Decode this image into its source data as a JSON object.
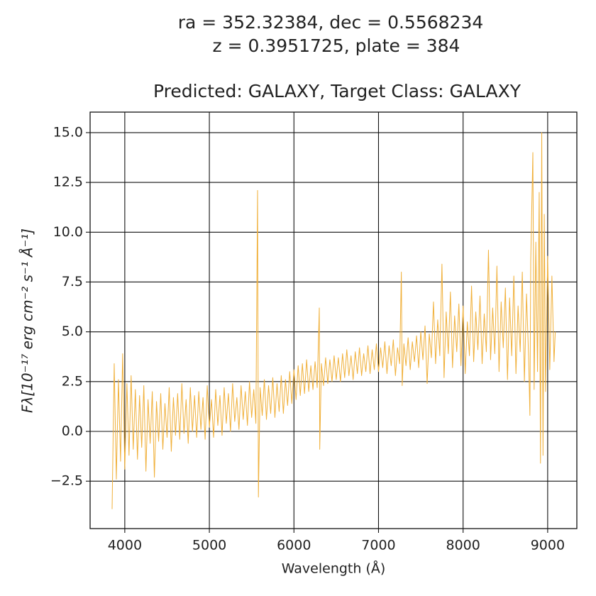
{
  "chart_data": {
    "type": "line",
    "title": [
      "ra = 352.32384, dec = 0.5568234",
      "z = 0.3951725, plate = 384"
    ],
    "subtitle": "Predicted: GALAXY, Target Class: GALAXY",
    "xlabel": "Wavelength (Å)",
    "ylabel": "Fλ[10⁻¹⁷ erg cm⁻² s⁻¹ Å⁻¹]",
    "xlim": [
      3590,
      9345
    ],
    "ylim": [
      -4.88,
      16.03
    ],
    "xticks": [
      4000,
      5000,
      6000,
      7000,
      8000,
      9000
    ],
    "yticks": [
      {
        "value": -2.5,
        "label": "−2.5"
      },
      {
        "value": 0,
        "label": "0.0"
      },
      2.5,
      {
        "value": 5,
        "label": "5.0"
      },
      7.5,
      {
        "value": 10,
        "label": "10.0"
      },
      12.5,
      {
        "value": 15,
        "label": "15.0"
      }
    ],
    "grid": true,
    "x": [
      3850,
      3875,
      3900,
      3925,
      3950,
      3975,
      4000,
      4025,
      4050,
      4075,
      4100,
      4125,
      4150,
      4175,
      4200,
      4225,
      4250,
      4275,
      4300,
      4325,
      4350,
      4375,
      4400,
      4425,
      4450,
      4475,
      4500,
      4525,
      4550,
      4575,
      4600,
      4625,
      4650,
      4675,
      4700,
      4725,
      4750,
      4775,
      4800,
      4825,
      4850,
      4875,
      4900,
      4925,
      4950,
      4975,
      5000,
      5025,
      5050,
      5075,
      5100,
      5125,
      5150,
      5175,
      5200,
      5225,
      5250,
      5275,
      5300,
      5325,
      5350,
      5375,
      5400,
      5425,
      5450,
      5475,
      5500,
      5525,
      5550,
      5570,
      5580,
      5600,
      5625,
      5650,
      5675,
      5700,
      5725,
      5750,
      5775,
      5800,
      5825,
      5850,
      5875,
      5900,
      5925,
      5950,
      5975,
      6000,
      6025,
      6050,
      6075,
      6100,
      6125,
      6150,
      6175,
      6200,
      6225,
      6250,
      6275,
      6300,
      6305,
      6325,
      6350,
      6375,
      6400,
      6425,
      6450,
      6475,
      6500,
      6525,
      6550,
      6575,
      6600,
      6625,
      6650,
      6675,
      6700,
      6725,
      6750,
      6775,
      6800,
      6825,
      6850,
      6875,
      6900,
      6925,
      6950,
      6975,
      7000,
      7025,
      7050,
      7075,
      7100,
      7125,
      7150,
      7175,
      7200,
      7225,
      7250,
      7270,
      7280,
      7300,
      7325,
      7350,
      7375,
      7400,
      7425,
      7450,
      7475,
      7500,
      7525,
      7550,
      7575,
      7600,
      7625,
      7650,
      7675,
      7700,
      7725,
      7750,
      7775,
      7800,
      7825,
      7850,
      7875,
      7900,
      7925,
      7950,
      7975,
      8000,
      8025,
      8050,
      8075,
      8100,
      8125,
      8150,
      8175,
      8200,
      8225,
      8250,
      8275,
      8300,
      8325,
      8350,
      8375,
      8400,
      8425,
      8450,
      8475,
      8500,
      8525,
      8550,
      8575,
      8600,
      8625,
      8650,
      8675,
      8700,
      8725,
      8750,
      8775,
      8790,
      8800,
      8825,
      8840,
      8860,
      8880,
      8900,
      8915,
      8930,
      8945,
      8960,
      8975,
      9000,
      9025,
      9050,
      9075,
      9090
    ],
    "series": [
      {
        "color": "#f0b03a",
        "values": [
          -3.9,
          3.4,
          -2.4,
          2.6,
          -1.5,
          3.9,
          -1.9,
          2.4,
          -1.2,
          2.8,
          -0.9,
          2.1,
          -1.4,
          1.8,
          -0.8,
          2.3,
          -2.0,
          1.6,
          -0.6,
          2.0,
          -2.3,
          1.5,
          -0.5,
          1.9,
          -0.9,
          1.4,
          -0.3,
          2.2,
          -1.0,
          1.7,
          -0.2,
          1.9,
          -0.4,
          2.4,
          -0.1,
          1.6,
          -0.6,
          2.2,
          0.0,
          1.8,
          -0.3,
          2.0,
          0.1,
          1.7,
          -0.4,
          2.3,
          0.2,
          1.6,
          -0.3,
          2.1,
          0.3,
          1.8,
          -0.2,
          2.2,
          0.4,
          1.9,
          0.0,
          2.4,
          0.5,
          1.7,
          0.1,
          2.3,
          0.6,
          2.0,
          0.3,
          2.5,
          0.7,
          2.1,
          0.4,
          12.1,
          -3.3,
          2.2,
          0.8,
          2.6,
          0.6,
          2.3,
          0.9,
          2.7,
          0.7,
          2.4,
          1.0,
          2.8,
          0.9,
          2.6,
          1.3,
          3.0,
          1.4,
          3.1,
          1.6,
          3.3,
          1.8,
          3.4,
          1.9,
          3.6,
          2.0,
          3.3,
          2.1,
          3.5,
          2.2,
          6.2,
          -0.9,
          3.4,
          2.3,
          3.7,
          2.4,
          3.6,
          2.5,
          3.8,
          2.6,
          3.7,
          2.5,
          3.9,
          2.7,
          4.1,
          2.8,
          3.8,
          2.6,
          4.0,
          2.9,
          4.2,
          2.8,
          3.9,
          3.0,
          4.3,
          2.9,
          4.1,
          3.1,
          4.4,
          3.0,
          4.2,
          3.2,
          4.5,
          2.9,
          4.3,
          3.3,
          4.6,
          2.8,
          4.2,
          3.4,
          8.0,
          2.3,
          4.4,
          3.3,
          4.7,
          3.1,
          4.5,
          3.5,
          4.8,
          3.2,
          5.0,
          3.6,
          5.3,
          2.4,
          4.9,
          3.7,
          6.5,
          3.4,
          5.6,
          3.8,
          8.4,
          2.7,
          6.0,
          3.9,
          7.0,
          3.2,
          5.8,
          4.0,
          6.4,
          3.3,
          6.3,
          2.9,
          5.5,
          3.8,
          7.3,
          3.5,
          6.0,
          4.1,
          6.8,
          3.4,
          5.9,
          4.0,
          9.1,
          3.6,
          6.2,
          3.9,
          8.3,
          3.0,
          6.5,
          4.2,
          7.2,
          2.6,
          6.7,
          3.8,
          7.8,
          2.9,
          6.3,
          4.0,
          8.0,
          2.5,
          6.9,
          3.7,
          0.8,
          8.6,
          14.0,
          2.1,
          9.5,
          3.0,
          12.0,
          -1.6,
          15.0,
          -1.2,
          10.9,
          2.0,
          8.8,
          3.1,
          7.8,
          3.5,
          5.0
        ]
      }
    ]
  }
}
